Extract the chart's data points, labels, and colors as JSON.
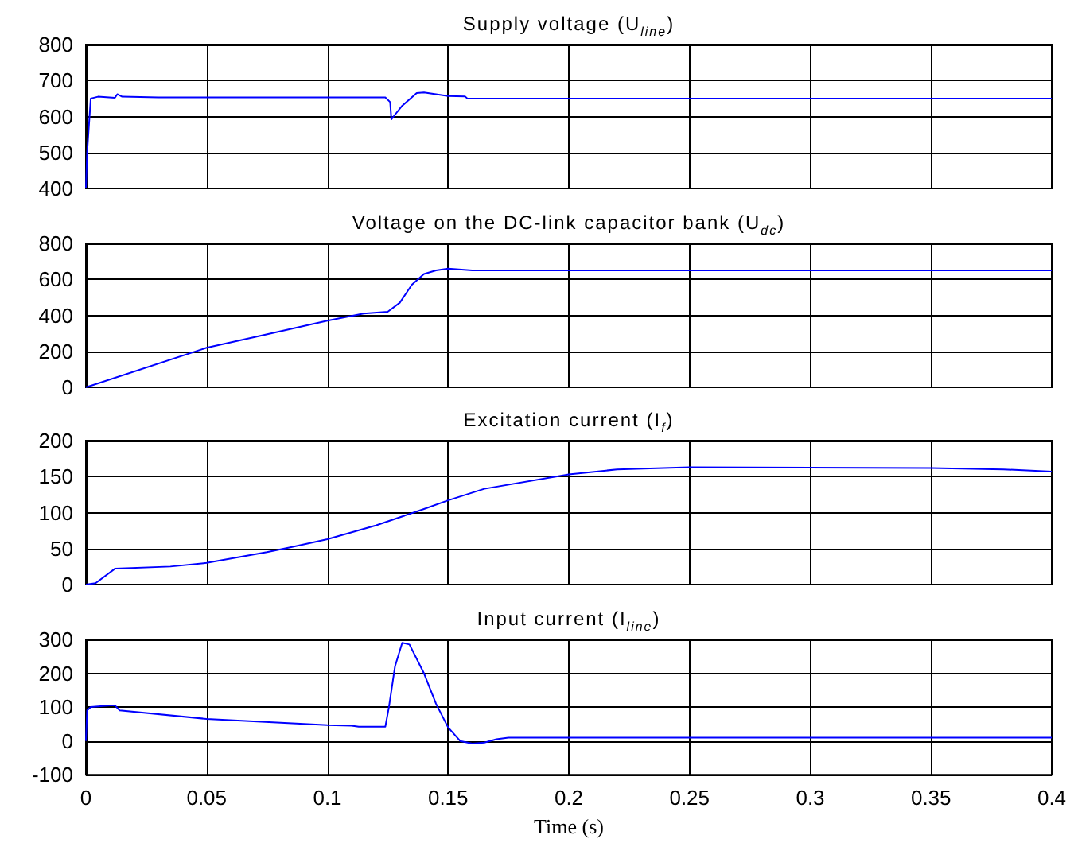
{
  "chart_data": [
    {
      "type": "line",
      "title": "Supply voltage (U$_{line}$)",
      "x": [
        0,
        0.0005,
        0.002,
        0.005,
        0.012,
        0.013,
        0.015,
        0.03,
        0.124,
        0.126,
        0.1265,
        0.128,
        0.131,
        0.137,
        0.14,
        0.145,
        0.15,
        0.157,
        0.158,
        0.4
      ],
      "series": [
        {
          "color": "#0000ff",
          "values": [
            400,
            500,
            650,
            655,
            652,
            662,
            655,
            653,
            653,
            640,
            592,
            605,
            630,
            665,
            667,
            662,
            657,
            656,
            650,
            650
          ]
        }
      ],
      "xlim": [
        0,
        0.4
      ],
      "xticks": [
        0,
        0.05,
        0.1,
        0.15,
        0.2,
        0.25,
        0.3,
        0.35,
        0.4
      ],
      "ylim": [
        400,
        800
      ],
      "yticks": [
        400,
        500,
        600,
        700,
        800
      ],
      "grid": true,
      "tick_labels": "y"
    },
    {
      "type": "line",
      "title": "Voltage on the DC-link capacitor bank (U$_{dc}$)",
      "x": [
        0,
        0.05,
        0.07,
        0.1,
        0.115,
        0.125,
        0.13,
        0.135,
        0.14,
        0.145,
        0.15,
        0.16,
        0.4
      ],
      "series": [
        {
          "color": "#0000ff",
          "values": [
            0,
            220,
            280,
            370,
            410,
            420,
            470,
            570,
            630,
            650,
            660,
            650,
            650
          ]
        }
      ],
      "xlim": [
        0,
        0.4
      ],
      "xticks": [
        0,
        0.05,
        0.1,
        0.15,
        0.2,
        0.25,
        0.3,
        0.35,
        0.4
      ],
      "ylim": [
        0,
        800
      ],
      "yticks": [
        0,
        200,
        400,
        600,
        800
      ],
      "grid": true,
      "tick_labels": "y"
    },
    {
      "type": "line",
      "title": "Excitation current  (I$_{f}$)",
      "x": [
        0,
        0.004,
        0.012,
        0.035,
        0.05,
        0.075,
        0.085,
        0.1,
        0.12,
        0.14,
        0.15,
        0.165,
        0.2,
        0.22,
        0.25,
        0.35,
        0.38,
        0.4
      ],
      "series": [
        {
          "color": "#0000ff",
          "values": [
            0,
            2,
            22,
            25,
            30,
            45,
            52,
            63,
            82,
            105,
            117,
            133,
            153,
            160,
            163,
            162,
            160,
            157
          ]
        }
      ],
      "xlim": [
        0,
        0.4
      ],
      "xticks": [
        0,
        0.05,
        0.1,
        0.15,
        0.2,
        0.25,
        0.3,
        0.35,
        0.4
      ],
      "ylim": [
        0,
        200
      ],
      "yticks": [
        0,
        50,
        100,
        150,
        200
      ],
      "grid": true,
      "tick_labels": "y"
    },
    {
      "type": "line",
      "title": "Input current (I$_{line}$)",
      "xlabel": "Time (s)",
      "x": [
        0,
        0.0005,
        0.002,
        0.01,
        0.012,
        0.014,
        0.05,
        0.1,
        0.11,
        0.113,
        0.124,
        0.1255,
        0.128,
        0.131,
        0.134,
        0.14,
        0.145,
        0.15,
        0.155,
        0.16,
        0.165,
        0.17,
        0.175,
        0.4
      ],
      "series": [
        {
          "color": "#0000ff",
          "values": [
            0,
            90,
            100,
            105,
            105,
            90,
            65,
            47,
            45,
            42,
            42,
            100,
            220,
            290,
            285,
            200,
            110,
            40,
            0,
            -8,
            -5,
            5,
            10,
            10
          ]
        }
      ],
      "xlim": [
        0,
        0.4
      ],
      "xticks": [
        0,
        0.05,
        0.1,
        0.15,
        0.2,
        0.25,
        0.3,
        0.35,
        0.4
      ],
      "ylim": [
        -100,
        300
      ],
      "yticks": [
        -100,
        0,
        100,
        200,
        300
      ],
      "grid": true
    }
  ]
}
